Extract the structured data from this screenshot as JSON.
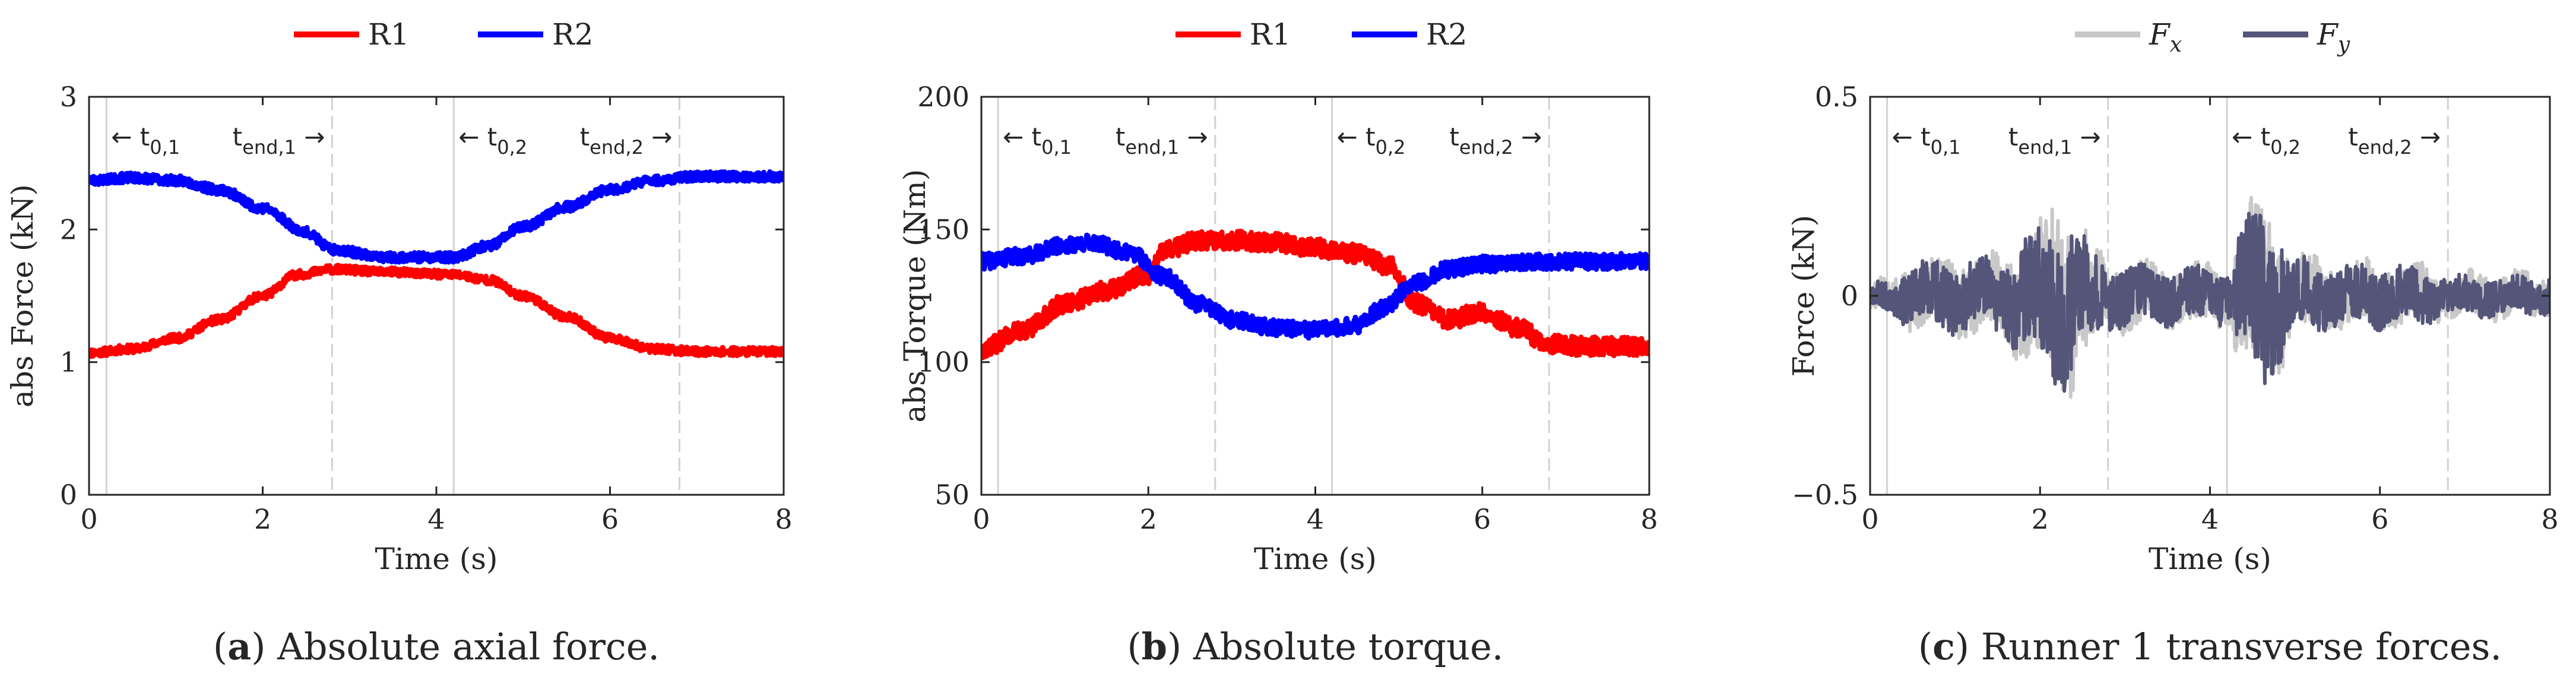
{
  "chart_data": [
    {
      "type": "line",
      "panel_letter": "a",
      "caption": "Absolute axial force.",
      "xlabel": "Time (s)",
      "ylabel": "abs Force (kN)",
      "xlim": [
        0,
        8
      ],
      "ylim": [
        0,
        3
      ],
      "xticks": [
        0,
        2,
        4,
        6,
        8
      ],
      "yticks": [
        0,
        1,
        2,
        3
      ],
      "xtick_labels": [
        "0",
        "2",
        "4",
        "6",
        "8"
      ],
      "ytick_labels": [
        "0",
        "1",
        "2",
        "3"
      ],
      "legend": [
        {
          "name": "R1",
          "color": "#ff0000"
        },
        {
          "name": "R2",
          "color": "#0000ff"
        }
      ],
      "event_lines": [
        0.2,
        2.8,
        4.2,
        6.8
      ],
      "event_labels": [
        {
          "text": "← t",
          "sub": "0,1",
          "x": 0.2,
          "side": "right"
        },
        {
          "text": "t",
          "sub": "end,1",
          "arrow": "→",
          "x": 2.8,
          "side": "left"
        },
        {
          "text": "← t",
          "sub": "0,2",
          "x": 4.2,
          "side": "right"
        },
        {
          "text": "t",
          "sub": "end,2",
          "arrow": "→",
          "x": 6.8,
          "side": "left"
        }
      ],
      "series": [
        {
          "name": "R1",
          "color": "#ff0000",
          "noise": 0.03,
          "seed": 11,
          "x": [
            0,
            0.5,
            1.0,
            1.5,
            2.0,
            2.4,
            2.8,
            3.4,
            4.2,
            4.6,
            5.0,
            5.5,
            6.0,
            6.5,
            7.0,
            8.0
          ],
          "y": [
            1.07,
            1.1,
            1.18,
            1.32,
            1.5,
            1.66,
            1.7,
            1.68,
            1.66,
            1.62,
            1.5,
            1.34,
            1.18,
            1.1,
            1.08,
            1.08
          ]
        },
        {
          "name": "R2",
          "color": "#0000ff",
          "noise": 0.035,
          "seed": 23,
          "x": [
            0,
            0.5,
            1.0,
            1.5,
            2.0,
            2.5,
            2.8,
            3.4,
            4.2,
            4.6,
            5.0,
            5.5,
            6.0,
            6.5,
            7.0,
            8.0
          ],
          "y": [
            2.37,
            2.39,
            2.37,
            2.3,
            2.16,
            1.98,
            1.85,
            1.79,
            1.79,
            1.88,
            2.02,
            2.17,
            2.3,
            2.37,
            2.4,
            2.4
          ]
        }
      ]
    },
    {
      "type": "line",
      "panel_letter": "b",
      "caption": "Absolute torque.",
      "xlabel": "Time (s)",
      "ylabel": "abs Torque (Nm)",
      "xlim": [
        0,
        8
      ],
      "ylim": [
        50,
        200
      ],
      "xticks": [
        0,
        2,
        4,
        6,
        8
      ],
      "yticks": [
        50,
        100,
        150,
        200
      ],
      "xtick_labels": [
        "0",
        "2",
        "4",
        "6",
        "8"
      ],
      "ytick_labels": [
        "50",
        "100",
        "150",
        "200"
      ],
      "legend": [
        {
          "name": "R1",
          "color": "#ff0000"
        },
        {
          "name": "R2",
          "color": "#0000ff"
        }
      ],
      "event_lines": [
        0.2,
        2.8,
        4.2,
        6.8
      ],
      "event_labels": [
        {
          "text": "← t",
          "sub": "0,1",
          "x": 0.2,
          "side": "right"
        },
        {
          "text": "t",
          "sub": "end,1",
          "arrow": "→",
          "x": 2.8,
          "side": "left"
        },
        {
          "text": "← t",
          "sub": "0,2",
          "x": 4.2,
          "side": "right"
        },
        {
          "text": "t",
          "sub": "end,2",
          "arrow": "→",
          "x": 6.8,
          "side": "left"
        }
      ],
      "series": [
        {
          "name": "R1",
          "color": "#ff0000",
          "noise": 3.5,
          "seed": 37,
          "x": [
            0,
            0.5,
            1.0,
            1.5,
            2.0,
            2.2,
            2.6,
            3.0,
            3.5,
            4.0,
            4.5,
            4.9,
            5.2,
            5.6,
            6.0,
            6.4,
            6.8,
            7.2,
            8.0
          ],
          "y": [
            105,
            112,
            122,
            127,
            133,
            142,
            146,
            146,
            145,
            143,
            141,
            136,
            122,
            116,
            119,
            113,
            107,
            106,
            106
          ]
        },
        {
          "name": "R2",
          "color": "#0000ff",
          "noise": 3,
          "seed": 41,
          "x": [
            0,
            0.5,
            1.0,
            1.3,
            1.8,
            2.2,
            2.6,
            3.0,
            3.5,
            4.0,
            4.5,
            4.8,
            5.2,
            5.6,
            6.0,
            7.0,
            8.0
          ],
          "y": [
            138,
            140,
            144,
            145,
            141,
            132,
            122,
            116,
            113,
            112,
            114,
            120,
            130,
            135,
            137,
            138,
            138
          ]
        }
      ]
    },
    {
      "type": "line",
      "panel_letter": "c",
      "caption": "Runner 1 transverse forces.",
      "xlabel": "Time (s)",
      "ylabel": "Force (kN)",
      "xlim": [
        0,
        8
      ],
      "ylim": [
        -0.5,
        0.5
      ],
      "xticks": [
        0,
        2,
        4,
        6,
        8
      ],
      "yticks": [
        -0.5,
        0,
        0.5
      ],
      "xtick_labels": [
        "0",
        "2",
        "4",
        "6",
        "8"
      ],
      "ytick_labels": [
        "−0.5",
        "0",
        "0.5"
      ],
      "legend": [
        {
          "name": "F",
          "sub": "x",
          "color": "#c8c8c8"
        },
        {
          "name": "F",
          "sub": "y",
          "color": "#55557a"
        }
      ],
      "event_lines": [
        0.2,
        2.8,
        4.2,
        6.8
      ],
      "event_labels": [
        {
          "text": "← t",
          "sub": "0,1",
          "x": 0.2,
          "side": "right"
        },
        {
          "text": "t",
          "sub": "end,1",
          "arrow": "→",
          "x": 2.8,
          "side": "left"
        },
        {
          "text": "← t",
          "sub": "0,2",
          "x": 4.2,
          "side": "right"
        },
        {
          "text": "t",
          "sub": "end,2",
          "arrow": "→",
          "x": 6.8,
          "side": "left"
        }
      ],
      "series": [
        {
          "name": "Fx",
          "color": "#c8c8c8",
          "signal": "oscillation",
          "seed": 53,
          "envelope_t": [
            0,
            0.2,
            0.5,
            1.0,
            1.5,
            1.8,
            2.1,
            2.3,
            2.5,
            2.8,
            3.5,
            4.2,
            4.4,
            4.6,
            4.8,
            5.0,
            5.5,
            6.0,
            6.5,
            6.7,
            8.0
          ],
          "envelope_a": [
            0.04,
            0.05,
            0.09,
            0.1,
            0.1,
            0.16,
            0.21,
            0.26,
            0.17,
            0.09,
            0.08,
            0.08,
            0.2,
            0.26,
            0.18,
            0.1,
            0.09,
            0.09,
            0.08,
            0.06,
            0.06
          ]
        },
        {
          "name": "Fy",
          "color": "#55557a",
          "signal": "oscillation",
          "seed": 67,
          "envelope_t": [
            0,
            0.2,
            0.5,
            1.0,
            1.5,
            1.8,
            2.1,
            2.3,
            2.5,
            2.8,
            3.5,
            4.2,
            4.4,
            4.6,
            4.8,
            5.0,
            5.5,
            6.0,
            6.5,
            6.7,
            8.0
          ],
          "envelope_a": [
            0.03,
            0.04,
            0.08,
            0.09,
            0.09,
            0.14,
            0.19,
            0.23,
            0.15,
            0.08,
            0.07,
            0.07,
            0.17,
            0.23,
            0.16,
            0.09,
            0.08,
            0.08,
            0.07,
            0.05,
            0.05
          ]
        }
      ]
    }
  ]
}
